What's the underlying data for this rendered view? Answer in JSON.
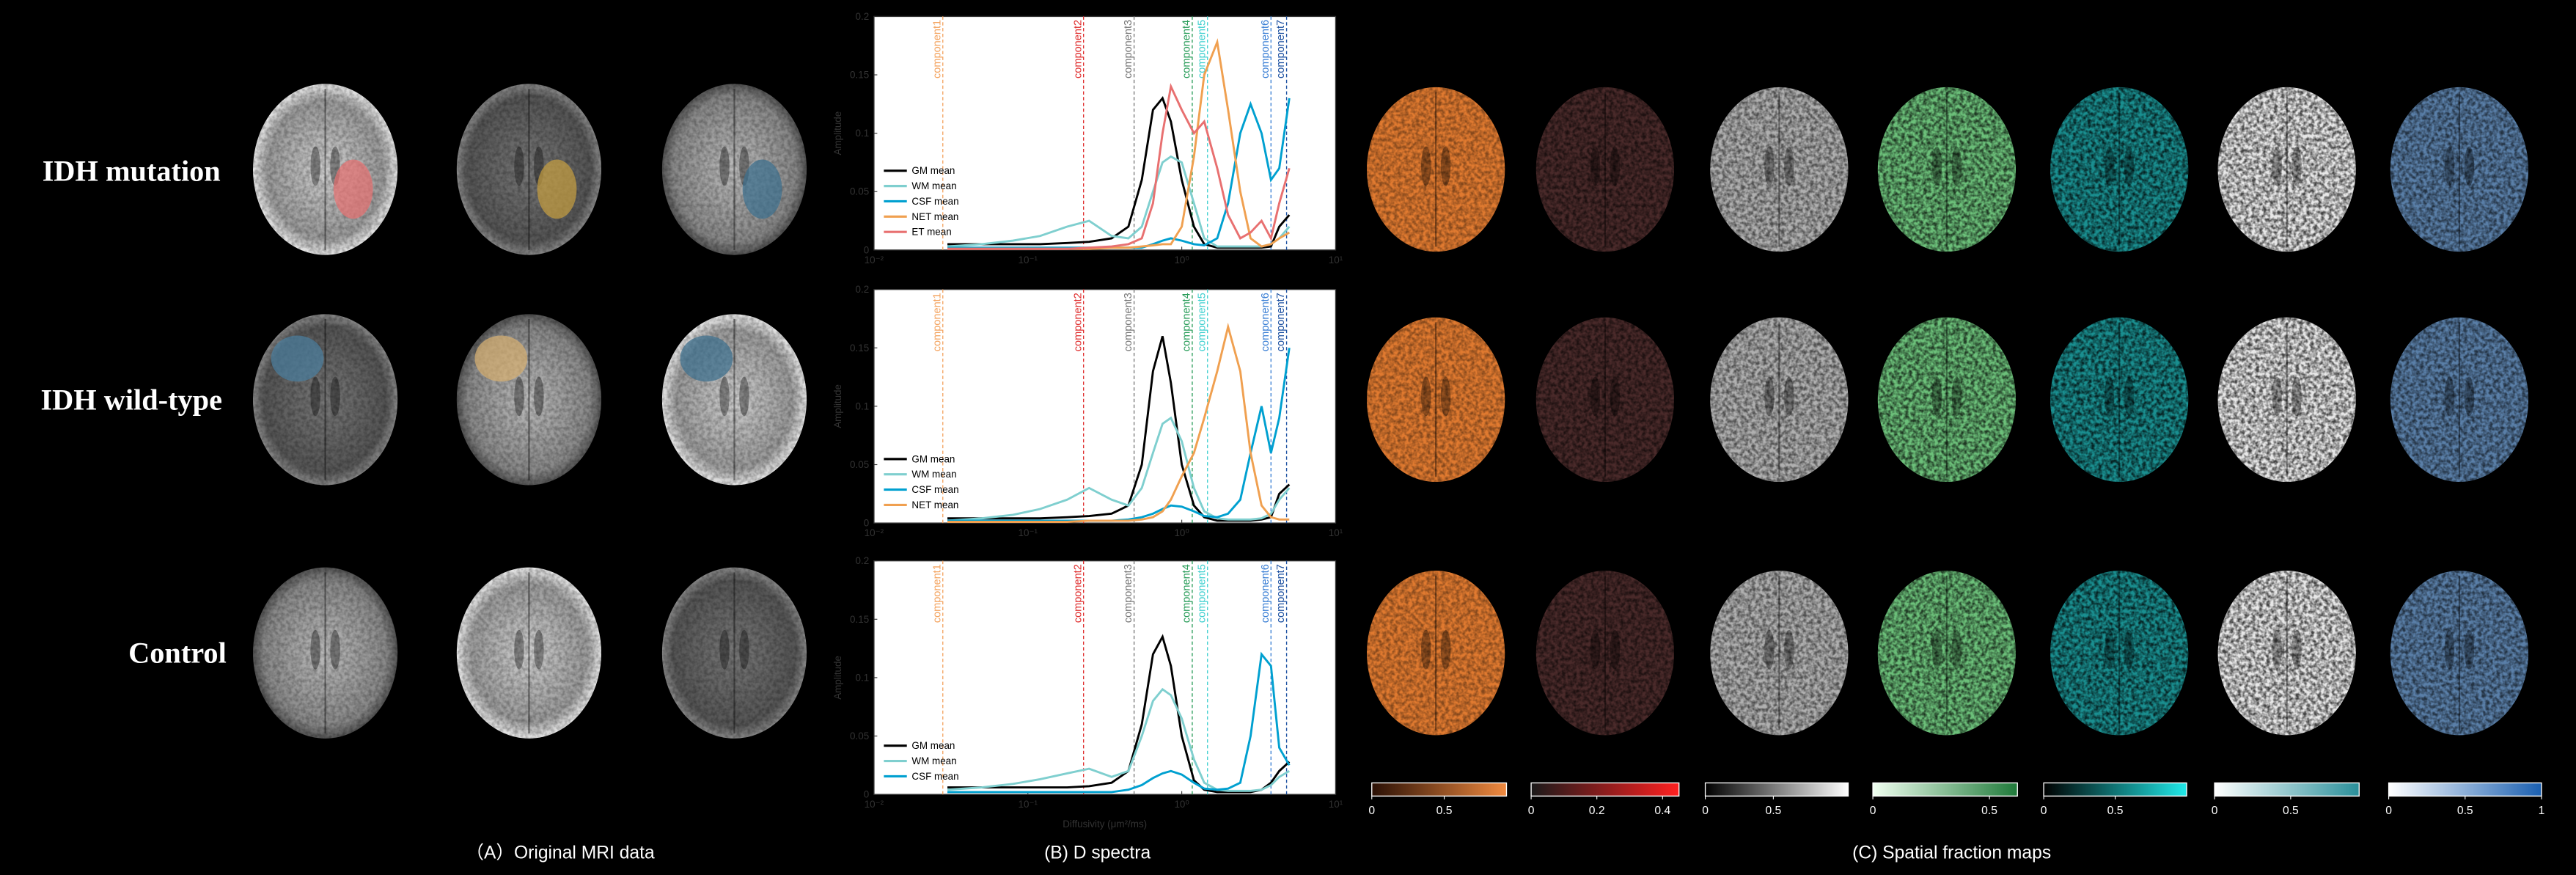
{
  "row_labels": [
    "IDH mutation",
    "IDH wild-type",
    "Control"
  ],
  "panel_captions": [
    "（A）Original MRI data",
    "(B) D spectra",
    "(C) Spatial fraction maps"
  ],
  "chart_data": [
    {
      "type": "line",
      "ylabel": "Amplitude",
      "xscale": "log",
      "legend": "lower left",
      "xlim": [
        0.01,
        10
      ],
      "xticks": [
        {
          "value": 0.01,
          "label": "10⁻²"
        },
        {
          "value": 0.1,
          "label": "10⁻¹"
        },
        {
          "value": 1,
          "label": "10⁰"
        },
        {
          "value": 10,
          "label": "10¹"
        }
      ],
      "ylim": [
        0,
        0.2
      ],
      "yticks": [
        0,
        0.05,
        0.1,
        0.15,
        0.2
      ],
      "components": [
        {
          "label": "component1",
          "value": 0.028,
          "color": "#f4a460"
        },
        {
          "label": "component2",
          "value": 0.23,
          "color": "#e03030"
        },
        {
          "label": "component3",
          "value": 0.49,
          "color": "#777777"
        },
        {
          "label": "component4",
          "value": 1.17,
          "color": "#2a9d5a"
        },
        {
          "label": "component5",
          "value": 1.47,
          "color": "#40d0d0"
        },
        {
          "label": "component6",
          "value": 3.8,
          "color": "#3a7fd5"
        },
        {
          "label": "component7",
          "value": 4.8,
          "color": "#1a4fa0"
        }
      ],
      "x": [
        0.03,
        0.05,
        0.08,
        0.12,
        0.18,
        0.25,
        0.35,
        0.45,
        0.55,
        0.65,
        0.75,
        0.85,
        1.0,
        1.2,
        1.4,
        1.7,
        2.0,
        2.4,
        2.8,
        3.3,
        3.8,
        4.3,
        5.0
      ],
      "series": [
        {
          "name": "GM mean",
          "color": "#000000",
          "values": [
            0.005,
            0.005,
            0.005,
            0.005,
            0.006,
            0.007,
            0.01,
            0.02,
            0.06,
            0.12,
            0.13,
            0.11,
            0.06,
            0.02,
            0.005,
            0.002,
            0.002,
            0.002,
            0.002,
            0.002,
            0.003,
            0.02,
            0.03
          ]
        },
        {
          "name": "WM mean",
          "color": "#7fcfcf",
          "values": [
            0.003,
            0.005,
            0.008,
            0.012,
            0.02,
            0.025,
            0.012,
            0.01,
            0.02,
            0.05,
            0.075,
            0.08,
            0.075,
            0.04,
            0.01,
            0.003,
            0.003,
            0.003,
            0.003,
            0.003,
            0.005,
            0.01,
            0.02
          ]
        },
        {
          "name": "CSF mean",
          "color": "#00a0d0",
          "values": [
            0.002,
            0.002,
            0.002,
            0.002,
            0.002,
            0.002,
            0.002,
            0.002,
            0.002,
            0.005,
            0.008,
            0.01,
            0.008,
            0.005,
            0.004,
            0.01,
            0.04,
            0.1,
            0.125,
            0.1,
            0.06,
            0.07,
            0.13
          ]
        },
        {
          "name": "NET mean",
          "color": "#f0a050",
          "values": [
            0.001,
            0.001,
            0.001,
            0.001,
            0.001,
            0.001,
            0.002,
            0.002,
            0.003,
            0.004,
            0.005,
            0.005,
            0.02,
            0.08,
            0.15,
            0.178,
            0.12,
            0.05,
            0.01,
            0.003,
            0.005,
            0.01,
            0.015
          ]
        },
        {
          "name": "ET mean",
          "color": "#e87070",
          "values": [
            0.001,
            0.001,
            0.001,
            0.001,
            0.001,
            0.002,
            0.003,
            0.005,
            0.01,
            0.04,
            0.1,
            0.14,
            0.12,
            0.1,
            0.11,
            0.07,
            0.03,
            0.01,
            0.015,
            0.025,
            0.01,
            0.04,
            0.07
          ]
        }
      ]
    },
    {
      "type": "line",
      "ylabel": "Amplitude",
      "xscale": "log",
      "legend": "lower left",
      "xlim": [
        0.01,
        10
      ],
      "xticks": [
        {
          "value": 0.01,
          "label": "10⁻²"
        },
        {
          "value": 0.1,
          "label": "10⁻¹"
        },
        {
          "value": 1,
          "label": "10⁰"
        },
        {
          "value": 10,
          "label": "10¹"
        }
      ],
      "ylim": [
        0,
        0.2
      ],
      "yticks": [
        0,
        0.05,
        0.1,
        0.15,
        0.2
      ],
      "components": [
        {
          "label": "component1",
          "value": 0.028,
          "color": "#f4a460"
        },
        {
          "label": "component2",
          "value": 0.23,
          "color": "#e03030"
        },
        {
          "label": "component3",
          "value": 0.49,
          "color": "#777777"
        },
        {
          "label": "component4",
          "value": 1.17,
          "color": "#2a9d5a"
        },
        {
          "label": "component5",
          "value": 1.47,
          "color": "#40d0d0"
        },
        {
          "label": "component6",
          "value": 3.8,
          "color": "#3a7fd5"
        },
        {
          "label": "component7",
          "value": 4.8,
          "color": "#1a4fa0"
        }
      ],
      "x": [
        0.03,
        0.05,
        0.08,
        0.12,
        0.18,
        0.25,
        0.35,
        0.45,
        0.55,
        0.65,
        0.75,
        0.85,
        1.0,
        1.2,
        1.4,
        1.7,
        2.0,
        2.4,
        2.8,
        3.3,
        3.8,
        4.3,
        5.0
      ],
      "series": [
        {
          "name": "GM mean",
          "color": "#000000",
          "values": [
            0.004,
            0.004,
            0.004,
            0.004,
            0.005,
            0.006,
            0.008,
            0.015,
            0.05,
            0.13,
            0.16,
            0.12,
            0.05,
            0.015,
            0.005,
            0.002,
            0.002,
            0.002,
            0.002,
            0.003,
            0.005,
            0.025,
            0.033
          ]
        },
        {
          "name": "WM mean",
          "color": "#7fcfcf",
          "values": [
            0.002,
            0.004,
            0.007,
            0.012,
            0.02,
            0.03,
            0.02,
            0.015,
            0.03,
            0.06,
            0.085,
            0.09,
            0.07,
            0.03,
            0.01,
            0.004,
            0.003,
            0.003,
            0.003,
            0.004,
            0.008,
            0.02,
            0.03
          ]
        },
        {
          "name": "CSF mean",
          "color": "#00a0d0",
          "values": [
            0.002,
            0.002,
            0.002,
            0.002,
            0.002,
            0.002,
            0.002,
            0.003,
            0.005,
            0.008,
            0.012,
            0.015,
            0.014,
            0.01,
            0.006,
            0.005,
            0.008,
            0.02,
            0.06,
            0.1,
            0.06,
            0.09,
            0.15
          ]
        },
        {
          "name": "NET mean",
          "color": "#f0a050",
          "values": [
            0.001,
            0.001,
            0.001,
            0.001,
            0.001,
            0.002,
            0.002,
            0.002,
            0.003,
            0.005,
            0.01,
            0.02,
            0.04,
            0.06,
            0.09,
            0.13,
            0.168,
            0.13,
            0.06,
            0.015,
            0.005,
            0.003,
            0.003
          ]
        }
      ]
    },
    {
      "type": "line",
      "ylabel": "Amplitude",
      "xlabel": "Diffusivity (μm²/ms)",
      "xscale": "log",
      "legend": "lower left",
      "xlim": [
        0.01,
        10
      ],
      "xticks": [
        {
          "value": 0.01,
          "label": "10⁻²"
        },
        {
          "value": 0.1,
          "label": "10⁻¹"
        },
        {
          "value": 1,
          "label": "10⁰"
        },
        {
          "value": 10,
          "label": "10¹"
        }
      ],
      "ylim": [
        0,
        0.2
      ],
      "yticks": [
        0,
        0.05,
        0.1,
        0.15,
        0.2
      ],
      "components": [
        {
          "label": "component1",
          "value": 0.028,
          "color": "#f4a460"
        },
        {
          "label": "component2",
          "value": 0.23,
          "color": "#e03030"
        },
        {
          "label": "component3",
          "value": 0.49,
          "color": "#777777"
        },
        {
          "label": "component4",
          "value": 1.17,
          "color": "#2a9d5a"
        },
        {
          "label": "component5",
          "value": 1.47,
          "color": "#40d0d0"
        },
        {
          "label": "component6",
          "value": 3.8,
          "color": "#3a7fd5"
        },
        {
          "label": "component7",
          "value": 4.8,
          "color": "#1a4fa0"
        }
      ],
      "x": [
        0.03,
        0.05,
        0.08,
        0.12,
        0.18,
        0.25,
        0.35,
        0.45,
        0.55,
        0.65,
        0.75,
        0.85,
        1.0,
        1.2,
        1.4,
        1.7,
        2.0,
        2.4,
        2.8,
        3.3,
        3.8,
        4.3,
        5.0
      ],
      "series": [
        {
          "name": "GM mean",
          "color": "#000000",
          "values": [
            0.006,
            0.006,
            0.006,
            0.006,
            0.006,
            0.007,
            0.01,
            0.02,
            0.06,
            0.12,
            0.135,
            0.11,
            0.05,
            0.012,
            0.004,
            0.002,
            0.002,
            0.002,
            0.002,
            0.004,
            0.01,
            0.02,
            0.028
          ]
        },
        {
          "name": "WM mean",
          "color": "#7fcfcf",
          "values": [
            0.004,
            0.006,
            0.009,
            0.013,
            0.018,
            0.022,
            0.015,
            0.02,
            0.05,
            0.08,
            0.09,
            0.085,
            0.065,
            0.03,
            0.01,
            0.004,
            0.003,
            0.003,
            0.003,
            0.004,
            0.008,
            0.015,
            0.02
          ]
        },
        {
          "name": "CSF mean",
          "color": "#00a0d0",
          "values": [
            0.002,
            0.002,
            0.002,
            0.002,
            0.002,
            0.002,
            0.002,
            0.004,
            0.008,
            0.014,
            0.018,
            0.02,
            0.017,
            0.01,
            0.005,
            0.004,
            0.005,
            0.01,
            0.05,
            0.12,
            0.11,
            0.04,
            0.025
          ]
        }
      ]
    }
  ],
  "colorbars": [
    {
      "colors": [
        "#2a1005",
        "#f08a40"
      ],
      "lim": [
        0,
        0.93
      ],
      "ticks": [
        0,
        0.5
      ]
    },
    {
      "colors": [
        "#1a1a1a",
        "#ff2020"
      ],
      "lim": [
        0,
        0.45
      ],
      "ticks": [
        0,
        0.2,
        0.4
      ]
    },
    {
      "colors": [
        "#000000",
        "#ffffff"
      ],
      "lim": [
        0,
        1.05
      ],
      "ticks": [
        0,
        0.5
      ]
    },
    {
      "colors": [
        "#f0fff0",
        "#1f7a3a"
      ],
      "lim": [
        0,
        0.62
      ],
      "ticks": [
        0,
        0.5
      ]
    },
    {
      "colors": [
        "#000000",
        "#20e8e8"
      ],
      "lim": [
        0,
        1.0
      ],
      "ticks": [
        0,
        0.5
      ]
    },
    {
      "colors": [
        "#ffffff",
        "#2a8f9a"
      ],
      "lim": [
        0,
        0.95
      ],
      "ticks": [
        0,
        0.5
      ]
    },
    {
      "colors": [
        "#ffffff",
        "#1a5fb0"
      ],
      "lim": [
        0,
        1.0
      ],
      "ticks": [
        0,
        0.5,
        1
      ]
    }
  ]
}
